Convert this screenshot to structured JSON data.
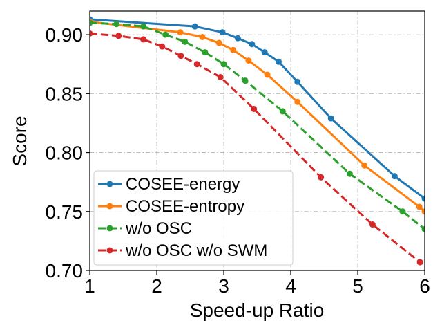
{
  "chart_data": {
    "type": "line",
    "title": "",
    "xlabel": "Speed-up Ratio",
    "ylabel": "Score",
    "xlim": [
      1,
      6
    ],
    "ylim": [
      0.7,
      0.92
    ],
    "xticks": [
      1,
      2,
      3,
      4,
      5,
      6
    ],
    "xtick_labels": [
      "1",
      "2",
      "3",
      "4",
      "5",
      "6"
    ],
    "yticks": [
      0.7,
      0.75,
      0.8,
      0.85,
      0.9
    ],
    "ytick_labels": [
      "0.70",
      "0.75",
      "0.80",
      "0.85",
      "0.90"
    ],
    "grid": true,
    "legend_position": "lower-left",
    "series": [
      {
        "name": "COSEE-energy",
        "color": "#1f77b4",
        "linestyle": "solid",
        "x": [
          1.0,
          2.57,
          2.98,
          3.21,
          3.42,
          3.61,
          3.82,
          4.1,
          4.6,
          5.55,
          6.0
        ],
        "y": [
          0.913,
          0.907,
          0.902,
          0.897,
          0.892,
          0.885,
          0.877,
          0.86,
          0.829,
          0.78,
          0.761
        ]
      },
      {
        "name": "COSEE-entropy",
        "color": "#ff7f0e",
        "linestyle": "solid",
        "x": [
          1.0,
          2.35,
          2.68,
          2.93,
          3.14,
          3.37,
          3.65,
          4.1,
          5.1,
          5.92,
          6.0
        ],
        "y": [
          0.911,
          0.902,
          0.898,
          0.893,
          0.887,
          0.878,
          0.866,
          0.843,
          0.789,
          0.754,
          0.75
        ]
      },
      {
        "name": "w/o OSC",
        "color": "#2ca02c",
        "linestyle": "dashed",
        "x": [
          1.0,
          1.4,
          1.8,
          2.13,
          2.42,
          2.72,
          3.0,
          3.32,
          3.88,
          4.88,
          5.67,
          6.0
        ],
        "y": [
          0.91,
          0.909,
          0.907,
          0.9,
          0.894,
          0.885,
          0.875,
          0.861,
          0.835,
          0.782,
          0.75,
          0.735
        ]
      },
      {
        "name": "w/o OSC w/o SWM",
        "color": "#d62728",
        "linestyle": "dashed",
        "x": [
          1.0,
          1.43,
          1.8,
          2.08,
          2.36,
          2.6,
          2.95,
          3.45,
          4.45,
          5.22,
          5.93
        ],
        "y": [
          0.901,
          0.899,
          0.896,
          0.89,
          0.882,
          0.875,
          0.864,
          0.837,
          0.779,
          0.739,
          0.707
        ]
      }
    ]
  }
}
